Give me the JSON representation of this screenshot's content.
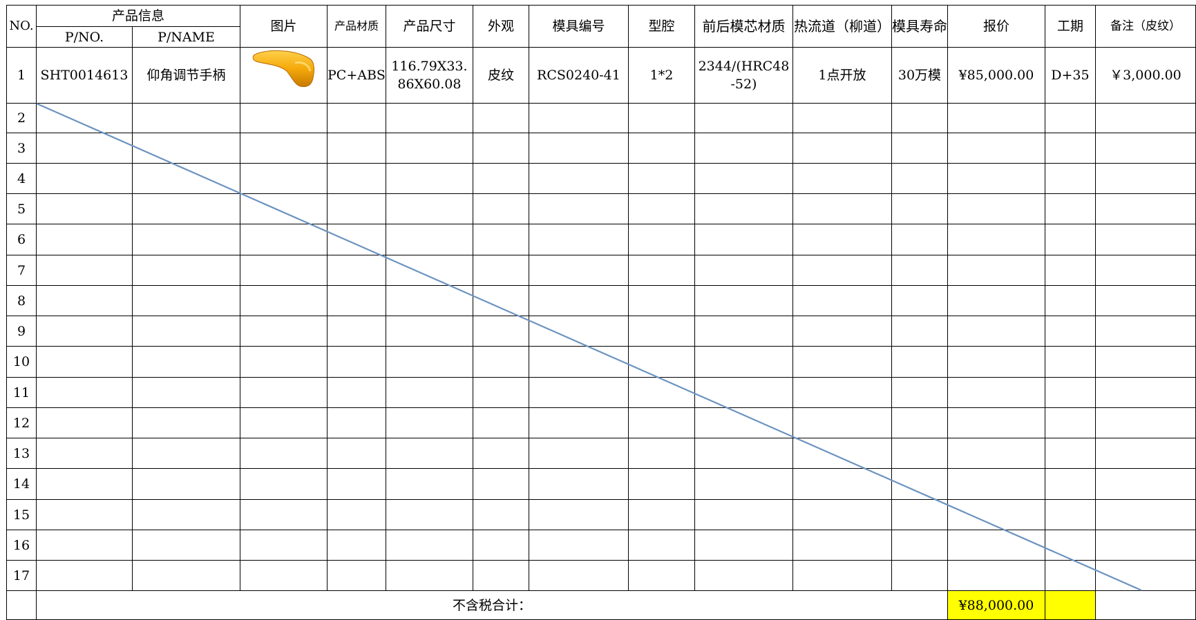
{
  "header": {
    "no": "NO.",
    "product_info": "产品信息",
    "p_no": "P/NO.",
    "p_name": "P/NAME",
    "picture": "图片",
    "material": "产品材质",
    "size": "产品尺寸",
    "appearance": "外观",
    "mold_no": "模具编号",
    "cavity": "型腔",
    "core_material": "前后模芯材质",
    "hot_runner": "热流道（柳道）",
    "mold_life": "模具寿命",
    "quote": "报价",
    "lead_time": "工期",
    "remark": "备注（皮纹）"
  },
  "row1": {
    "no": "1",
    "p_no": "SHT0014613",
    "p_name": "仰角调节手柄",
    "picture_icon": "orange-handle-part-image",
    "material": "PC+ABS",
    "size_line1": "116.79X33.",
    "size_line2": "86X60.08",
    "appearance": "皮纹",
    "mold_no": "RCS0240-41",
    "cavity": "1*2",
    "core_line1": "2344/(HRC48",
    "core_line2": "-52)",
    "hot_runner": "1点开放",
    "mold_life": "30万模",
    "quote": "¥85,000.00",
    "lead_time": "D+35",
    "remark": "￥3,000.00"
  },
  "empty_rows": [
    "2",
    "3",
    "4",
    "5",
    "6",
    "7",
    "8",
    "9",
    "10",
    "11",
    "12",
    "13",
    "14",
    "15",
    "16",
    "17"
  ],
  "footer": {
    "total_label": "不含税合计：",
    "total_value": "¥88,000.00"
  },
  "colors": {
    "highlight": "#ffff00",
    "diagonal_line": "#6b93c0",
    "part_orange": "#f5a90a"
  }
}
